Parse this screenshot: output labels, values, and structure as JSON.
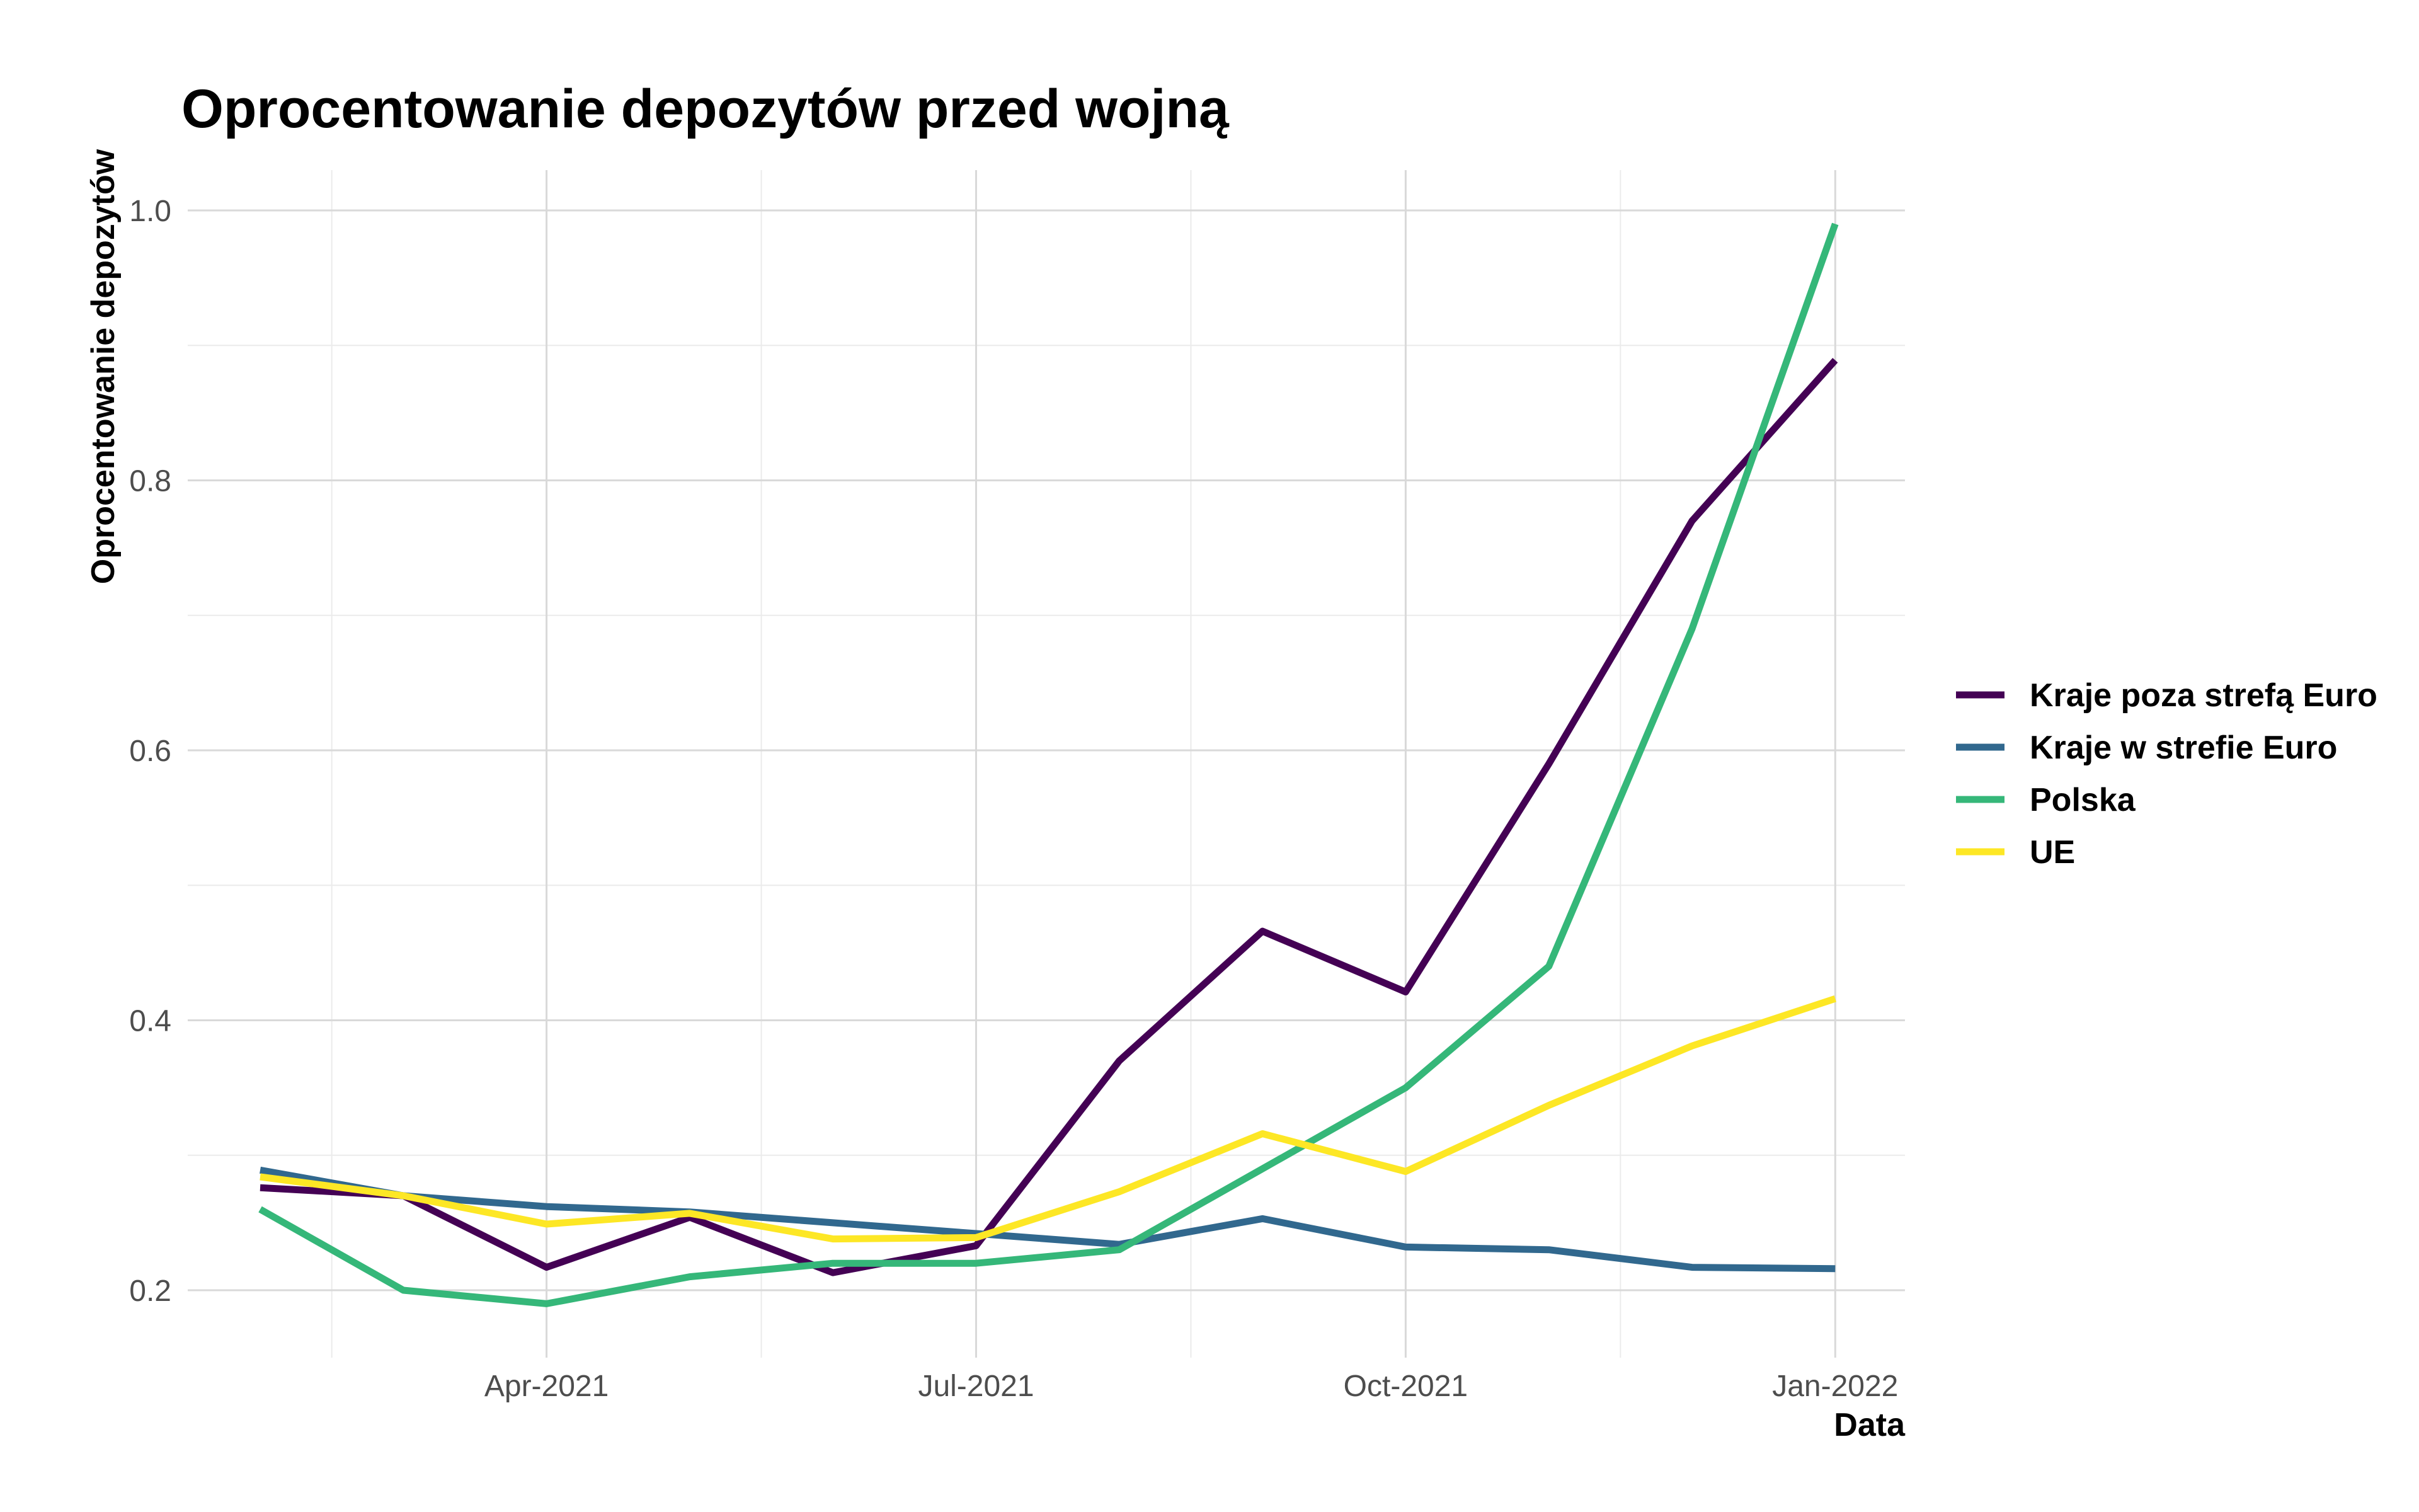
{
  "chart_data": {
    "type": "line",
    "title": "Oprocentowanie depozytów przed wojną",
    "xlabel": "Data",
    "ylabel": "Oprocentowanie depozytów",
    "x": [
      "2021-02",
      "2021-03",
      "2021-04",
      "2021-05",
      "2021-06",
      "2021-07",
      "2021-08",
      "2021-09",
      "2021-10",
      "2021-11",
      "2021-12",
      "2022-01"
    ],
    "x_ticks": [
      "Apr-2021",
      "Jul-2021",
      "Oct-2021",
      "Jan-2022"
    ],
    "y_ticks": [
      "0.2",
      "0.4",
      "0.6",
      "0.8",
      "1.0"
    ],
    "ylim": [
      0.19,
      1.0
    ],
    "grid": true,
    "legend_position": "right",
    "series": [
      {
        "name": "Kraje poza strefą Euro",
        "color": "#440154",
        "values": [
          0.276,
          0.27,
          0.217,
          0.254,
          0.213,
          0.233,
          0.37,
          0.466,
          0.421,
          0.59,
          0.77,
          0.889
        ]
      },
      {
        "name": "Kraje w strefie Euro",
        "color": "#31688e",
        "values": [
          0.289,
          0.27,
          0.262,
          0.258,
          0.25,
          0.242,
          0.234,
          0.253,
          0.232,
          0.23,
          0.217,
          0.216
        ]
      },
      {
        "name": "Polska",
        "color": "#35b779",
        "values": [
          0.26,
          0.2,
          0.19,
          0.21,
          0.22,
          0.22,
          0.23,
          0.29,
          0.35,
          0.44,
          0.69,
          0.99
        ]
      },
      {
        "name": "UE",
        "color": "#fde725",
        "values": [
          0.284,
          0.27,
          0.249,
          0.257,
          0.238,
          0.239,
          0.273,
          0.316,
          0.288,
          0.337,
          0.381,
          0.416
        ]
      }
    ]
  }
}
